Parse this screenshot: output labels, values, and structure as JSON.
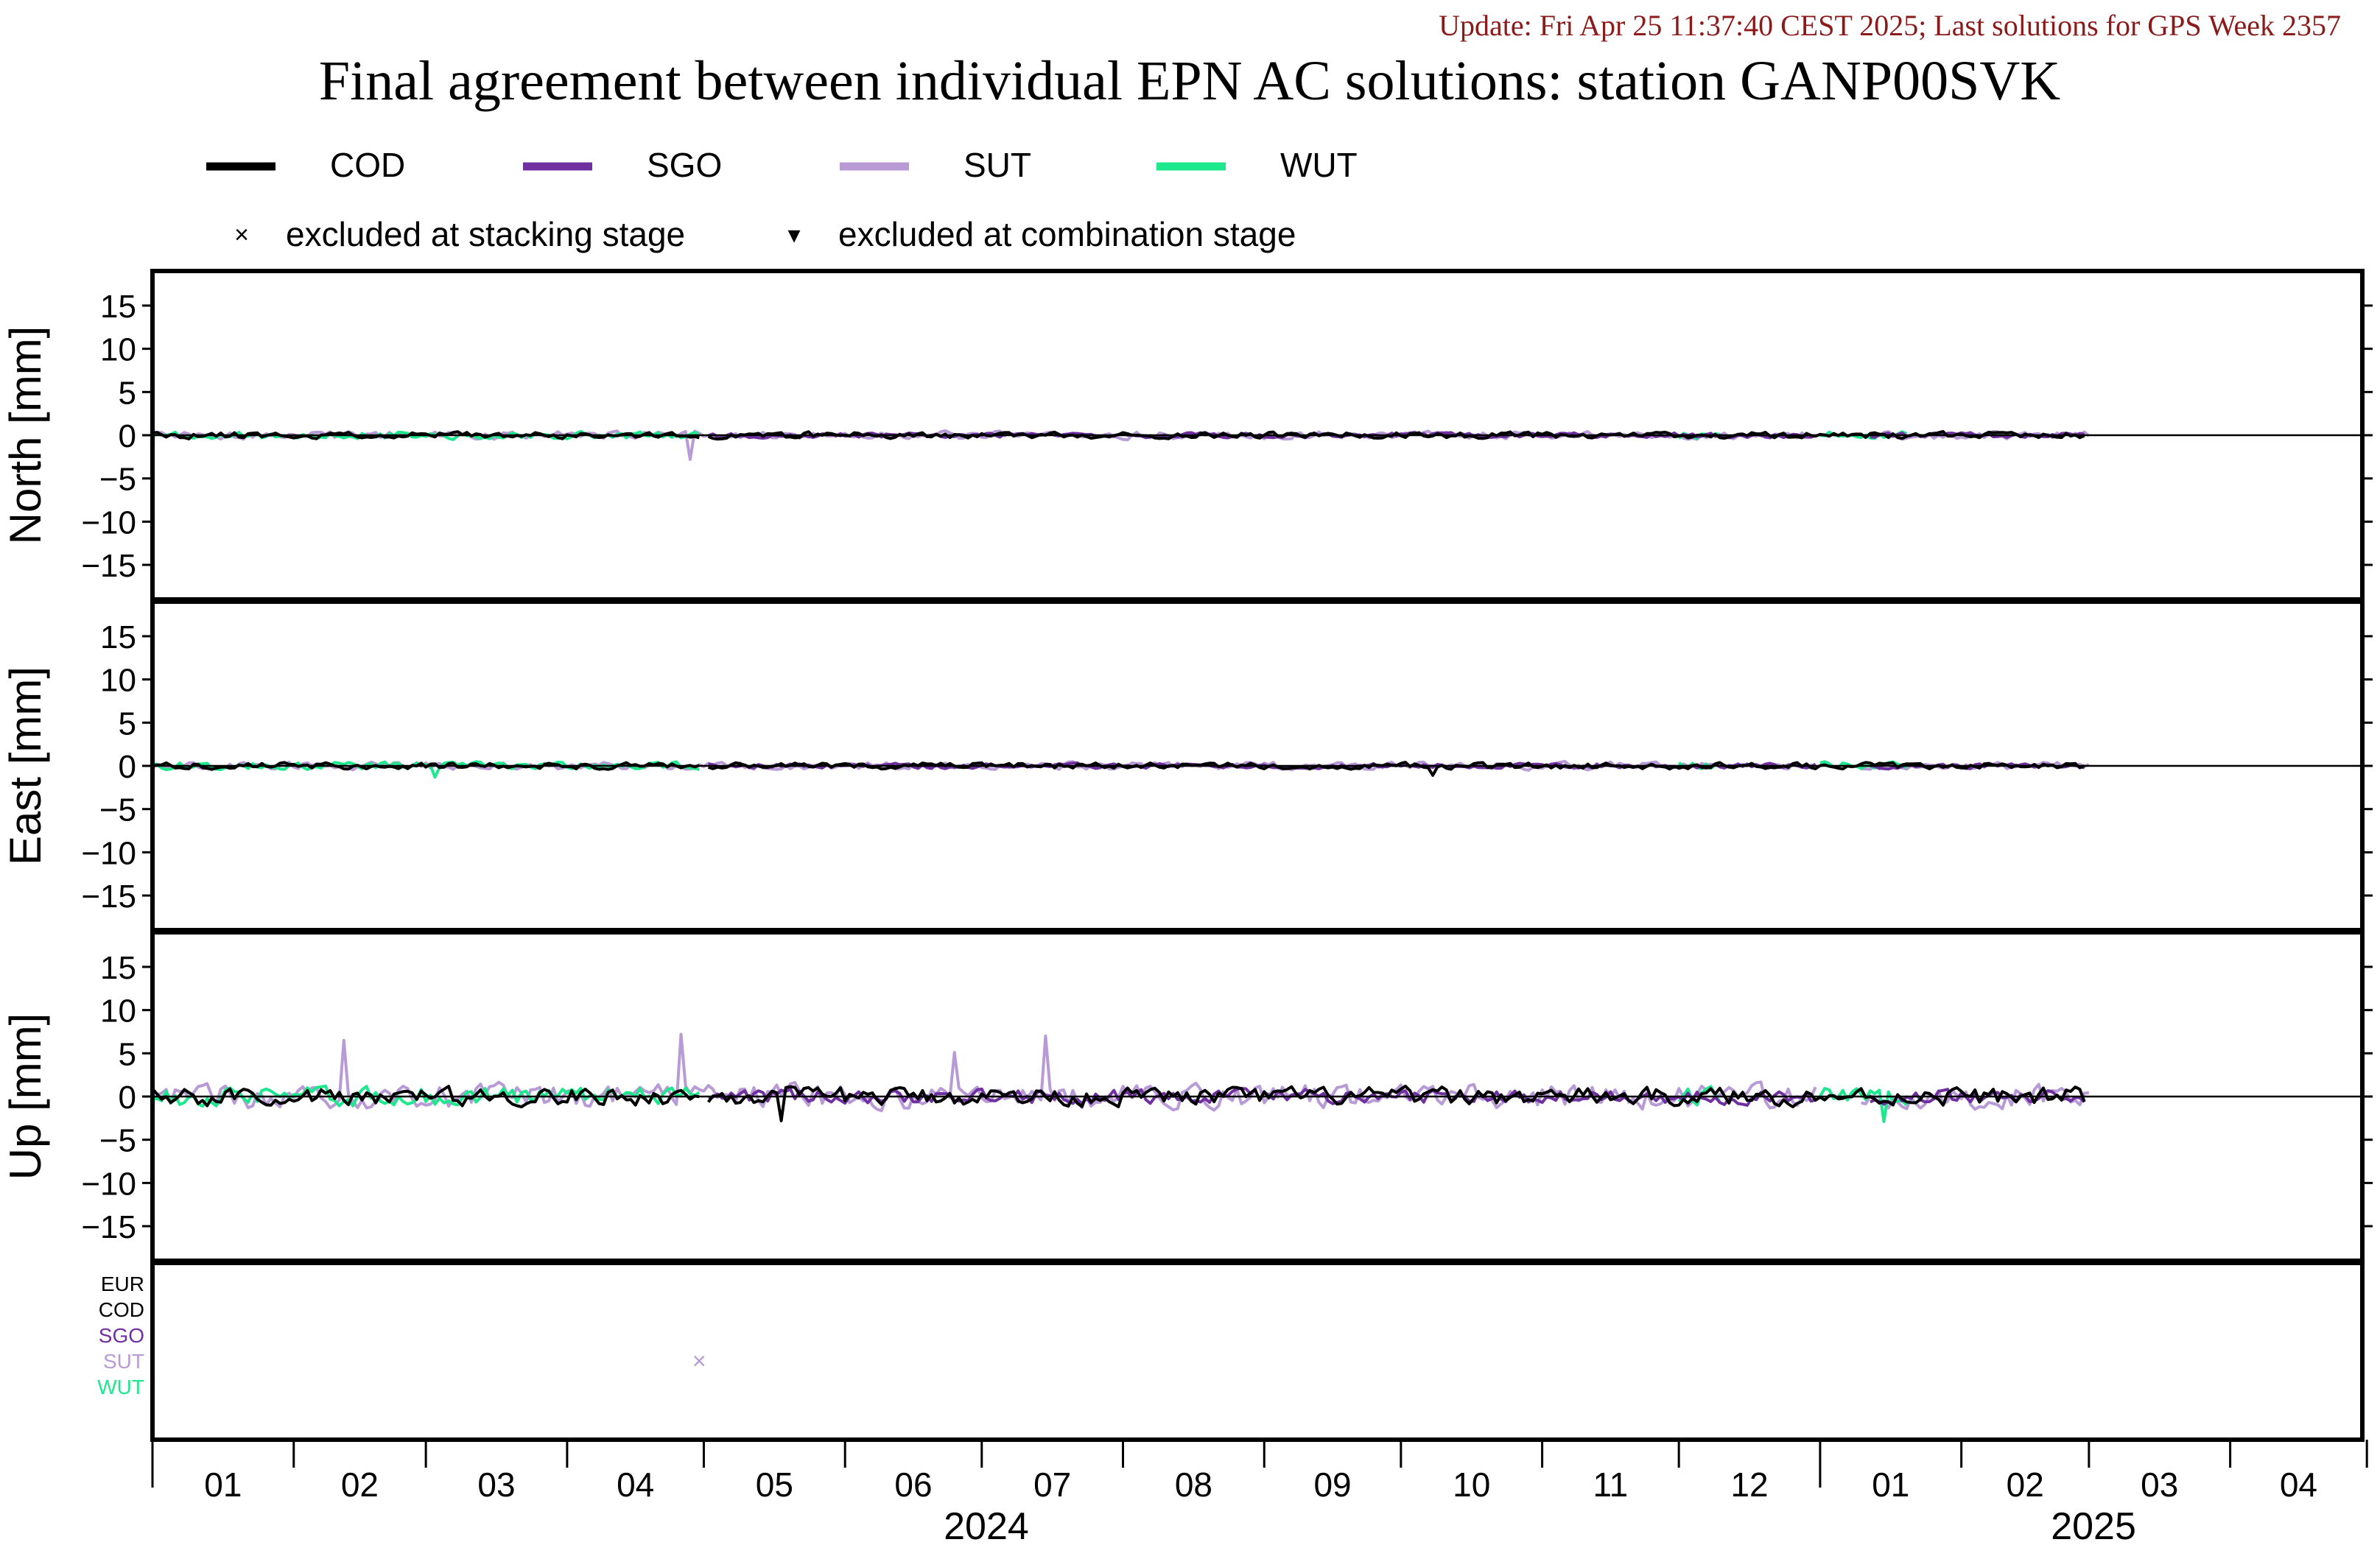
{
  "header": {
    "update_text": "Update: Fri Apr 25 11:37:40 CEST 2025; Last solutions for GPS Week 2357",
    "title": "Final agreement between individual EPN AC solutions: station GANP00SVK"
  },
  "colors": {
    "update": "#8b1a1a",
    "COD": "#000000",
    "SGO": "#7030a0",
    "SUT": "#b89bd6",
    "WUT": "#1ee88e",
    "EUR": "#000000",
    "zero_line": "#000000",
    "frame": "#000000"
  },
  "legend": {
    "series": [
      {
        "name": "COD",
        "color_key": "COD"
      },
      {
        "name": "SGO",
        "color_key": "SGO"
      },
      {
        "name": "SUT",
        "color_key": "SUT"
      },
      {
        "name": "WUT",
        "color_key": "WUT"
      }
    ],
    "markers": [
      {
        "symbol": "×",
        "label": "excluded at stacking stage"
      },
      {
        "symbol": "▾",
        "label": "excluded at combination stage"
      }
    ]
  },
  "chart_data": {
    "type": "line",
    "x_unit": "month",
    "x_range": [
      "2024-01-01",
      "2025-04-30"
    ],
    "x_ticks": [
      "01",
      "02",
      "03",
      "04",
      "05",
      "06",
      "07",
      "08",
      "09",
      "10",
      "11",
      "12",
      "01",
      "02",
      "03",
      "04"
    ],
    "x_years": [
      {
        "label": "2024",
        "tick_index_start": 0
      },
      {
        "label": "2025",
        "tick_index_start": 12
      }
    ],
    "ylim": [
      -19,
      19
    ],
    "yticks": [
      15,
      10,
      5,
      0,
      -5,
      -10,
      -15
    ],
    "grid": false,
    "legend_position": "top",
    "panels": [
      {
        "id": "north",
        "ylabel": "North [mm]",
        "series": [
          {
            "name": "COD",
            "segments": [
              [
                "2024-01-01",
                "2024-04-30"
              ],
              [
                "2024-05-02",
                "2025-02-28"
              ]
            ],
            "amp": 0.5,
            "seed": 11
          },
          {
            "name": "SGO",
            "segments": [
              [
                "2024-05-02",
                "2024-12-31"
              ],
              [
                "2025-01-12",
                "2025-02-28"
              ]
            ],
            "amp": 0.4,
            "seed": 12
          },
          {
            "name": "SUT",
            "segments": [
              [
                "2024-01-01",
                "2024-12-31"
              ],
              [
                "2025-01-10",
                "2025-03-01"
              ]
            ],
            "amp": 0.6,
            "seed": 13
          },
          {
            "name": "WUT",
            "segments": [
              [
                "2024-01-01",
                "2024-04-30"
              ],
              [
                "2024-12-01",
                "2024-12-10"
              ],
              [
                "2025-01-01",
                "2025-01-20"
              ]
            ],
            "amp": 0.6,
            "seed": 14
          }
        ],
        "events": [
          {
            "name": "SUT",
            "date": "2024-04-28",
            "value": -2.8
          }
        ]
      },
      {
        "id": "east",
        "ylabel": "East [mm]",
        "series": [
          {
            "name": "COD",
            "segments": [
              [
                "2024-01-01",
                "2024-04-30"
              ],
              [
                "2024-05-02",
                "2025-02-28"
              ]
            ],
            "amp": 0.5,
            "seed": 21
          },
          {
            "name": "SGO",
            "segments": [
              [
                "2024-05-02",
                "2024-12-31"
              ],
              [
                "2025-01-12",
                "2025-02-28"
              ]
            ],
            "amp": 0.4,
            "seed": 22
          },
          {
            "name": "SUT",
            "segments": [
              [
                "2024-01-01",
                "2024-12-31"
              ],
              [
                "2025-01-10",
                "2025-03-01"
              ]
            ],
            "amp": 0.6,
            "seed": 23
          },
          {
            "name": "WUT",
            "segments": [
              [
                "2024-01-01",
                "2024-04-30"
              ],
              [
                "2024-12-01",
                "2024-12-10"
              ],
              [
                "2025-01-01",
                "2025-01-20"
              ]
            ],
            "amp": 0.6,
            "seed": 24
          }
        ],
        "events": [
          {
            "name": "WUT",
            "date": "2024-03-03",
            "value": -1.3
          },
          {
            "name": "COD",
            "date": "2024-10-08",
            "value": -1.1
          }
        ]
      },
      {
        "id": "up",
        "ylabel": "Up [mm]",
        "series": [
          {
            "name": "COD",
            "segments": [
              [
                "2024-01-01",
                "2024-04-30"
              ],
              [
                "2024-05-02",
                "2025-02-28"
              ]
            ],
            "amp": 1.4,
            "seed": 31
          },
          {
            "name": "SGO",
            "segments": [
              [
                "2024-05-02",
                "2024-12-31"
              ],
              [
                "2025-01-12",
                "2025-02-28"
              ]
            ],
            "amp": 1.1,
            "seed": 32
          },
          {
            "name": "SUT",
            "segments": [
              [
                "2024-01-01",
                "2024-12-31"
              ],
              [
                "2025-01-10",
                "2025-03-01"
              ]
            ],
            "amp": 1.9,
            "seed": 33
          },
          {
            "name": "WUT",
            "segments": [
              [
                "2024-01-01",
                "2024-04-30"
              ],
              [
                "2024-12-01",
                "2024-12-10"
              ],
              [
                "2025-01-01",
                "2025-01-20"
              ]
            ],
            "amp": 1.5,
            "seed": 34
          }
        ],
        "events": [
          {
            "name": "SUT",
            "date": "2024-02-12",
            "value": 6.5
          },
          {
            "name": "SUT",
            "date": "2024-04-26",
            "value": 7.2
          },
          {
            "name": "SUT",
            "date": "2024-07-15",
            "value": 7.0
          },
          {
            "name": "SUT",
            "date": "2024-06-25",
            "value": 5.1
          },
          {
            "name": "WUT",
            "date": "2025-01-15",
            "value": -2.9
          },
          {
            "name": "COD",
            "date": "2024-05-18",
            "value": -2.8
          }
        ]
      }
    ],
    "exclusion_panel": {
      "rows": [
        "EUR",
        "COD",
        "SGO",
        "SUT",
        "WUT"
      ],
      "marks": [
        {
          "row": "SUT",
          "date": "2024-04-30",
          "symbol": "×"
        }
      ]
    }
  }
}
